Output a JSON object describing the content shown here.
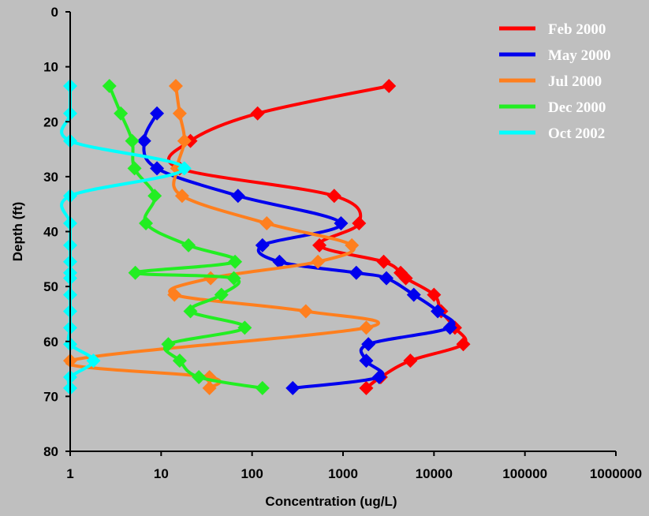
{
  "chart_data": {
    "type": "line",
    "title": "",
    "xlabel": "Concentration (ug/L)",
    "ylabel": "Depth (ft)",
    "x_scale": "log",
    "xlim": [
      1,
      1000000
    ],
    "ylim": [
      0,
      80
    ],
    "y_inverted": true,
    "x_ticks": [
      "1",
      "10",
      "100",
      "1000",
      "10000",
      "100000",
      "1000000"
    ],
    "y_ticks": [
      "0",
      "10",
      "20",
      "30",
      "40",
      "50",
      "60",
      "70",
      "80"
    ],
    "grid": false,
    "legend_position": "top-right",
    "background": "#bfbfbf",
    "series": [
      {
        "name": "Feb 2000",
        "color": "#ff0000",
        "points": [
          [
            3200,
            13.5
          ],
          [
            115,
            18.5
          ],
          [
            21,
            23.5
          ],
          [
            16,
            28.5
          ],
          [
            800,
            33.5
          ],
          [
            1500,
            38.5
          ],
          [
            550,
            42.5
          ],
          [
            2800,
            45.5
          ],
          [
            4300,
            47.5
          ],
          [
            4900,
            48.5
          ],
          [
            10000,
            51.5
          ],
          [
            12000,
            54.5
          ],
          [
            17000,
            57.5
          ],
          [
            21000,
            60.5
          ],
          [
            5500,
            63.5
          ],
          [
            2600,
            66.5
          ],
          [
            1800,
            68.5
          ]
        ]
      },
      {
        "name": "May 2000",
        "color": "#0000ee",
        "points": [
          [
            9,
            18.5
          ],
          [
            6.5,
            23.5
          ],
          [
            9,
            28.5
          ],
          [
            70,
            33.5
          ],
          [
            950,
            38.5
          ],
          [
            130,
            42.5
          ],
          [
            200,
            45.5
          ],
          [
            1400,
            47.5
          ],
          [
            3000,
            48.5
          ],
          [
            6000,
            51.5
          ],
          [
            11000,
            54.5
          ],
          [
            15000,
            57.5
          ],
          [
            1900,
            60.5
          ],
          [
            1800,
            63.5
          ],
          [
            2500,
            66.5
          ],
          [
            280,
            68.5
          ]
        ]
      },
      {
        "name": "Jul 2000",
        "color": "#ff7f1e",
        "points": [
          [
            14.5,
            13.5
          ],
          [
            16,
            18.5
          ],
          [
            18,
            23.5
          ],
          [
            15,
            28.5
          ],
          [
            17,
            33.5
          ],
          [
            145,
            38.5
          ],
          [
            1250,
            42.5
          ],
          [
            530,
            45.5
          ],
          [
            35,
            48.5
          ],
          [
            14,
            51.5
          ],
          [
            390,
            54.5
          ],
          [
            1800,
            57.5
          ],
          [
            1,
            63.5
          ],
          [
            34,
            66.5
          ],
          [
            34,
            68.5
          ]
        ]
      },
      {
        "name": "Dec 2000",
        "color": "#22ee22",
        "points": [
          [
            2.7,
            13.5
          ],
          [
            3.6,
            18.5
          ],
          [
            4.8,
            23.5
          ],
          [
            5.1,
            28.5
          ],
          [
            8.5,
            33.5
          ],
          [
            6.8,
            38.5
          ],
          [
            20,
            42.5
          ],
          [
            65,
            45.5
          ],
          [
            5.2,
            47.5
          ],
          [
            63,
            48.5
          ],
          [
            46,
            51.5
          ],
          [
            21,
            54.5
          ],
          [
            83,
            57.5
          ],
          [
            12,
            60.5
          ],
          [
            16,
            63.5
          ],
          [
            26,
            66.5
          ],
          [
            130,
            68.5
          ]
        ]
      },
      {
        "name": "Oct 2002",
        "color": "#00ffff",
        "points": [
          [
            1,
            13.5
          ],
          [
            1,
            18.5
          ],
          [
            1,
            23.5
          ],
          [
            18,
            28.5
          ],
          [
            1,
            33.5
          ],
          [
            1,
            38.5
          ],
          [
            1,
            42.5
          ],
          [
            1,
            45.5
          ],
          [
            1,
            47.5
          ],
          [
            1,
            48.5
          ],
          [
            1,
            51.5
          ],
          [
            1,
            54.5
          ],
          [
            1,
            57.5
          ],
          [
            1,
            60.5
          ],
          [
            1.8,
            63.5
          ],
          [
            1,
            66.5
          ],
          [
            1,
            68.5
          ]
        ]
      }
    ]
  }
}
